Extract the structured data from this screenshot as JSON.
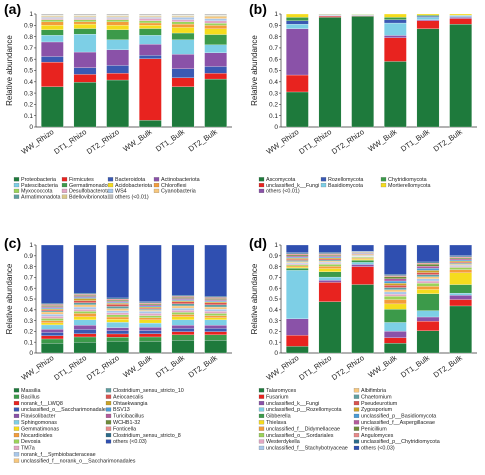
{
  "chart_data": [
    {
      "panel": "(a)",
      "type": "bar",
      "stacked": true,
      "ylabel": "Relative abundance",
      "ylim": [
        0,
        1
      ],
      "yticks": [
        "0",
        "0.1",
        "0.2",
        "0.3",
        "0.4",
        "0.5",
        "0.6",
        "0.7",
        "0.8",
        "0.9",
        "1"
      ],
      "categories": [
        "WW_Rhizo",
        "DT1_Rhizo",
        "DT2_Rhizo",
        "WW_Bulk",
        "DT1_Bulk",
        "DT2_Bulk"
      ],
      "series": [
        {
          "name": "Proteobacteria",
          "color": "#1e7a3c",
          "values": [
            0.36,
            0.4,
            0.42,
            0.06,
            0.36,
            0.42
          ]
        },
        {
          "name": "Firmicutes",
          "color": "#e8231f",
          "values": [
            0.22,
            0.07,
            0.06,
            0.55,
            0.08,
            0.05
          ]
        },
        {
          "name": "Bacteroidota",
          "color": "#3a59b3",
          "values": [
            0.05,
            0.06,
            0.07,
            0.03,
            0.08,
            0.06
          ]
        },
        {
          "name": "Actinobacteriota",
          "color": "#8a52a8",
          "values": [
            0.13,
            0.14,
            0.14,
            0.1,
            0.13,
            0.12
          ]
        },
        {
          "name": "Patescibacteria",
          "color": "#7dcfe6",
          "values": [
            0.06,
            0.16,
            0.09,
            0.08,
            0.13,
            0.07
          ]
        },
        {
          "name": "Germatimonadota",
          "color": "#3c9a4a",
          "values": [
            0.05,
            0.05,
            0.09,
            0.06,
            0.06,
            0.09
          ]
        },
        {
          "name": "Acidobacteriota",
          "color": "#f5dc1e",
          "values": [
            0.04,
            0.04,
            0.04,
            0.03,
            0.05,
            0.05
          ]
        },
        {
          "name": "Chloroflexi",
          "color": "#f39d3b",
          "values": [
            0.03,
            0.02,
            0.03,
            0.02,
            0.03,
            0.03
          ]
        },
        {
          "name": "Myxococcota",
          "color": "#9bd35a",
          "values": [
            0.02,
            0.02,
            0.02,
            0.02,
            0.02,
            0.02
          ]
        },
        {
          "name": "Desulfobacterota",
          "color": "#e3a7c4",
          "values": [
            0.01,
            0.01,
            0.01,
            0.02,
            0.02,
            0.02
          ]
        },
        {
          "name": "WS4",
          "color": "#a8c7ea",
          "values": [
            0.01,
            0.01,
            0.01,
            0.01,
            0.02,
            0.02
          ]
        },
        {
          "name": "Cyanobacteria",
          "color": "#f7c77e",
          "values": [
            0.01,
            0.01,
            0.01,
            0.01,
            0.01,
            0.02
          ]
        },
        {
          "name": "Armatimonadota",
          "color": "#5f9ea0",
          "values": [
            0.005,
            0.005,
            0.005,
            0.005,
            0.005,
            0.005
          ]
        },
        {
          "name": "Bdellovibrionota",
          "color": "#d9c88a",
          "values": [
            0.005,
            0.005,
            0.005,
            0.005,
            0.005,
            0.005
          ]
        },
        {
          "name": "others (<0.01)",
          "color": "#bdbdbd",
          "values": [
            0.01,
            0.01,
            0.01,
            0.01,
            0.01,
            0.01
          ]
        }
      ],
      "legend": {
        "columns": 4,
        "items": [
          [
            "Proteobacteria",
            "Firmicutes",
            "Bacteroidota",
            "Actinobacteriota"
          ],
          [
            "Patescibacteria",
            "Germatimonadota",
            "Acidobacteriota",
            "Chloroflexi"
          ],
          [
            "Myxococcota",
            "Desulfobacterota",
            "WS4",
            "Cyanobacteria"
          ],
          [
            "Armatimonadota",
            "Bdellovibrionota",
            "others (<0.01)"
          ]
        ]
      }
    },
    {
      "panel": "(b)",
      "type": "bar",
      "stacked": true,
      "ylabel": "Relative abundance",
      "ylim": [
        0,
        1
      ],
      "yticks": [
        "0",
        "0.1",
        "0.2",
        "0.3",
        "0.4",
        "0.5",
        "0.6",
        "0.7",
        "0.8",
        "0.9",
        "1"
      ],
      "categories": [
        "WW_Rhizo",
        "DT1_Rhizo",
        "DT2_Rhizo",
        "WW_Bulk",
        "DT1_Bulk",
        "DT2_Bulk"
      ],
      "series": [
        {
          "name": "Ascomycota",
          "color": "#1e7a3c",
          "values": [
            0.31,
            0.97,
            0.98,
            0.58,
            0.87,
            0.91
          ]
        },
        {
          "name": "unclassified_k__Fungi",
          "color": "#e8231f",
          "values": [
            0.15,
            0.01,
            0.005,
            0.21,
            0.07,
            0.05
          ]
        },
        {
          "name": "others (<0.01)",
          "color": "#8a52a8",
          "values": [
            0.41,
            0.005,
            0.005,
            0.02,
            0.01,
            0.01
          ]
        },
        {
          "name": "Basidiomycota",
          "color": "#7dcfe6",
          "values": [
            0.04,
            0.005,
            0.005,
            0.11,
            0.02,
            0.01
          ]
        },
        {
          "name": "Rozellomycota",
          "color": "#3a59b3",
          "values": [
            0.03,
            0.005,
            0.0,
            0.03,
            0.01,
            0.005
          ]
        },
        {
          "name": "Chytridiomycota",
          "color": "#3c9a4a",
          "values": [
            0.03,
            0.002,
            0.002,
            0.02,
            0.01,
            0.005
          ]
        },
        {
          "name": "Mortierellomycota",
          "color": "#f5dc1e",
          "values": [
            0.03,
            0.003,
            0.003,
            0.03,
            0.01,
            0.01
          ]
        }
      ],
      "legend": {
        "columns": 3,
        "items": [
          [
            "Ascomycota",
            "Rozellomycota",
            "Chytridiomycota"
          ],
          [
            "unclassified_k__Fungi",
            "Basidiomycota",
            "Mortierellomycota"
          ],
          [
            "others (<0.01)"
          ]
        ]
      }
    },
    {
      "panel": "(c)",
      "type": "bar",
      "stacked": true,
      "ylabel": "Relative abundance",
      "ylim": [
        0,
        1
      ],
      "yticks": [
        "0",
        "0.1",
        "0.2",
        "0.3",
        "0.4",
        "0.5",
        "0.6",
        "0.7",
        "0.8",
        "0.9",
        "1"
      ],
      "categories": [
        "WW_Rhizo",
        "DT1_Rhizo",
        "DT2_Rhizo",
        "WW_Bulk",
        "DT1_Bulk",
        "DT2_Bulk"
      ],
      "series": [
        {
          "name": "Massilia",
          "color": "#1e7a3c",
          "values": [
            0.09,
            0.1,
            0.11,
            0.11,
            0.12,
            0.12
          ]
        },
        {
          "name": "Bacillus",
          "color": "#3c9a4a",
          "values": [
            0.04,
            0.05,
            0.04,
            0.04,
            0.05,
            0.05
          ]
        },
        {
          "name": "norank_f__LWQ8",
          "color": "#e8231f",
          "values": [
            0.03,
            0.03,
            0.03,
            0.03,
            0.03,
            0.03
          ]
        },
        {
          "name": "unclassified_o__Saccharimonadales",
          "color": "#3a59b3",
          "values": [
            0.03,
            0.04,
            0.03,
            0.03,
            0.03,
            0.03
          ]
        },
        {
          "name": "Flavisolibacter",
          "color": "#8a52a8",
          "values": [
            0.03,
            0.04,
            0.03,
            0.03,
            0.03,
            0.03
          ]
        },
        {
          "name": "Sphingomonas",
          "color": "#7dcfe6",
          "values": [
            0.04,
            0.05,
            0.05,
            0.04,
            0.05,
            0.05
          ]
        },
        {
          "name": "Gemmatimonas",
          "color": "#f5dc1e",
          "values": [
            0.02,
            0.03,
            0.03,
            0.03,
            0.03,
            0.02
          ]
        },
        {
          "name": "Nocardioides",
          "color": "#f39d3b",
          "values": [
            0.02,
            0.03,
            0.02,
            0.02,
            0.02,
            0.02
          ]
        },
        {
          "name": "Devosia",
          "color": "#9bd35a",
          "values": [
            0.02,
            0.02,
            0.02,
            0.02,
            0.02,
            0.02
          ]
        },
        {
          "name": "TM7a",
          "color": "#e3a7c4",
          "values": [
            0.02,
            0.02,
            0.02,
            0.02,
            0.02,
            0.02
          ]
        },
        {
          "name": "norank_f__Symbiobacteraceae",
          "color": "#a8c7ea",
          "values": [
            0.02,
            0.02,
            0.02,
            0.02,
            0.02,
            0.02
          ]
        },
        {
          "name": "unclassified_f__norank_o__Saccharimonadales",
          "color": "#f7c77e",
          "values": [
            0.02,
            0.02,
            0.02,
            0.01,
            0.02,
            0.02
          ]
        },
        {
          "name": "Clostridium_sensu_stricto_10",
          "color": "#5f9ea0",
          "values": [
            0.01,
            0.02,
            0.02,
            0.01,
            0.02,
            0.02
          ]
        },
        {
          "name": "Aeiocaecalis",
          "color": "#d9534f",
          "values": [
            0.01,
            0.02,
            0.02,
            0.01,
            0.02,
            0.02
          ]
        },
        {
          "name": "Ohtaekwangia",
          "color": "#c9a227",
          "values": [
            0.01,
            0.02,
            0.01,
            0.01,
            0.01,
            0.01
          ]
        },
        {
          "name": "BSV13",
          "color": "#4a9cd6",
          "values": [
            0.01,
            0.01,
            0.01,
            0.01,
            0.01,
            0.01
          ]
        },
        {
          "name": "Turicibacillus",
          "color": "#b35a9b",
          "values": [
            0.01,
            0.01,
            0.01,
            0.01,
            0.01,
            0.01
          ]
        },
        {
          "name": "WCHB1-32",
          "color": "#6d8b3a",
          "values": [
            0.01,
            0.01,
            0.01,
            0.01,
            0.01,
            0.01
          ]
        },
        {
          "name": "Fonticella",
          "color": "#e88a8a",
          "values": [
            0.01,
            0.01,
            0.01,
            0.01,
            0.01,
            0.01
          ]
        },
        {
          "name": "Clostridium_sensu_stricto_8",
          "color": "#2b6b8a",
          "values": [
            0.01,
            0.01,
            0.01,
            0.01,
            0.01,
            0.01
          ]
        },
        {
          "name": "others (<0.03)",
          "color": "#2f4fb0",
          "values": [
            0.54,
            0.45,
            0.5,
            0.53,
            0.47,
            0.48
          ]
        }
      ],
      "legend": {
        "columns": 2,
        "items": [
          [
            "Massilia",
            "Clostridium_sensu_stricto_10"
          ],
          [
            "Bacillus",
            "Aeiocaecalis"
          ],
          [
            "norank_f__LWQ8",
            "Ohtaekwangia"
          ],
          [
            "unclassified_o__Saccharimonadales",
            "BSV13"
          ],
          [
            "Flavisolibacter",
            "Turicibacillus"
          ],
          [
            "Sphingomonas",
            "WCHB1-32"
          ],
          [
            "Gemmatimonas",
            "Fonticella"
          ],
          [
            "Nocardioides",
            "Clostridium_sensu_stricto_8"
          ],
          [
            "Devosia",
            "others (<0.03)"
          ],
          [
            "TM7a"
          ],
          [
            "norank_f__Symbiobacteraceae"
          ],
          [
            "unclassified_f__norank_o__Saccharimonadales"
          ]
        ]
      }
    },
    {
      "panel": "(d)",
      "type": "bar",
      "stacked": true,
      "ylabel": "Relative abundance",
      "ylim": [
        0,
        1
      ],
      "yticks": [
        "0",
        "0.1",
        "0.2",
        "0.3",
        "0.4",
        "0.5",
        "0.6",
        "0.7",
        "0.8",
        "0.9",
        "1"
      ],
      "categories": [
        "WW_Rhizo",
        "DT1_Rhizo",
        "DT2_Rhizo",
        "WW_Bulk",
        "DT1_Bulk",
        "DT2_Bulk"
      ],
      "series": [
        {
          "name": "Talaromyces",
          "color": "#1e7a3c",
          "values": [
            0.06,
            0.48,
            0.65,
            0.09,
            0.21,
            0.44
          ]
        },
        {
          "name": "Fusarium",
          "color": "#e8231f",
          "values": [
            0.1,
            0.18,
            0.17,
            0.05,
            0.09,
            0.06
          ]
        },
        {
          "name": "unclassified_k__Fungi",
          "color": "#8a52a8",
          "values": [
            0.15,
            0.02,
            0.02,
            0.06,
            0.04,
            0.04
          ]
        },
        {
          "name": "unclassified_p__Rozellomycota",
          "color": "#7dcfe6",
          "values": [
            0.44,
            0.03,
            0.02,
            0.08,
            0.06,
            0.02
          ]
        },
        {
          "name": "Gibberella",
          "color": "#3c9a4a",
          "values": [
            0.02,
            0.05,
            0.02,
            0.12,
            0.16,
            0.08
          ]
        },
        {
          "name": "Thielava",
          "color": "#f5dc1e",
          "values": [
            0.01,
            0.03,
            0.01,
            0.05,
            0.04,
            0.11
          ]
        },
        {
          "name": "unclassified_f__Didymellaceae",
          "color": "#f39d3b",
          "values": [
            0.01,
            0.02,
            0.01,
            0.04,
            0.03,
            0.03
          ]
        },
        {
          "name": "unclassified_o__Sordariales",
          "color": "#9bd35a",
          "values": [
            0.01,
            0.02,
            0.01,
            0.03,
            0.03,
            0.02
          ]
        },
        {
          "name": "Westerdykella",
          "color": "#e3a7c4",
          "values": [
            0.01,
            0.01,
            0.005,
            0.02,
            0.02,
            0.01
          ]
        },
        {
          "name": "unclassified_f__Stachybotryaceae",
          "color": "#a8c7ea",
          "values": [
            0.01,
            0.01,
            0.005,
            0.02,
            0.02,
            0.01
          ]
        },
        {
          "name": "Albifimbria",
          "color": "#f7c77e",
          "values": [
            0.01,
            0.01,
            0.005,
            0.02,
            0.02,
            0.01
          ]
        },
        {
          "name": "Chaetomium",
          "color": "#5f9ea0",
          "values": [
            0.01,
            0.01,
            0.005,
            0.02,
            0.02,
            0.01
          ]
        },
        {
          "name": "Pseudeurotium",
          "color": "#d9534f",
          "values": [
            0.01,
            0.01,
            0.005,
            0.02,
            0.02,
            0.01
          ]
        },
        {
          "name": "Zygosporium",
          "color": "#c9a227",
          "values": [
            0.01,
            0.01,
            0.005,
            0.02,
            0.02,
            0.01
          ]
        },
        {
          "name": "unclassified_p__Basidiomycota",
          "color": "#4a9cd6",
          "values": [
            0.01,
            0.01,
            0.005,
            0.02,
            0.02,
            0.01
          ]
        },
        {
          "name": "unclassified_f__Aspergillaceae",
          "color": "#b35a9b",
          "values": [
            0.01,
            0.01,
            0.005,
            0.02,
            0.02,
            0.01
          ]
        },
        {
          "name": "Penicillium",
          "color": "#6d8b3a",
          "values": [
            0.01,
            0.01,
            0.005,
            0.02,
            0.02,
            0.01
          ]
        },
        {
          "name": "Angulomyces",
          "color": "#e88a8a",
          "values": [
            0.01,
            0.01,
            0.005,
            0.01,
            0.01,
            0.01
          ]
        },
        {
          "name": "unclassified_p__Chytridiomycota",
          "color": "#2b6b8a",
          "values": [
            0.01,
            0.01,
            0.005,
            0.01,
            0.01,
            0.01
          ]
        },
        {
          "name": "others (<0.03)",
          "color": "#2f4fb0",
          "values": [
            0.07,
            0.07,
            0.06,
            0.27,
            0.16,
            0.1
          ]
        }
      ],
      "legend": {
        "columns": 2,
        "items": [
          [
            "Talaromyces",
            "Albifimbria"
          ],
          [
            "Fusarium",
            "Chaetomium"
          ],
          [
            "unclassified_k__Fungi",
            "Pseudeurotium"
          ],
          [
            "unclassified_p__Rozellomycota",
            "Zygosporium"
          ],
          [
            "Gibberella",
            "unclassified_p__Basidiomycota"
          ],
          [
            "Thielava",
            "unclassified_f__Aspergillaceae"
          ],
          [
            "unclassified_f__Didymellaceae",
            "Penicillium"
          ],
          [
            "unclassified_o__Sordariales",
            "Angulomyces"
          ],
          [
            "Westerdykella",
            "unclassified_p__Chytridiomycota"
          ],
          [
            "unclassified_f__Stachybotryaceae",
            "others (<0.03)"
          ]
        ]
      }
    }
  ]
}
